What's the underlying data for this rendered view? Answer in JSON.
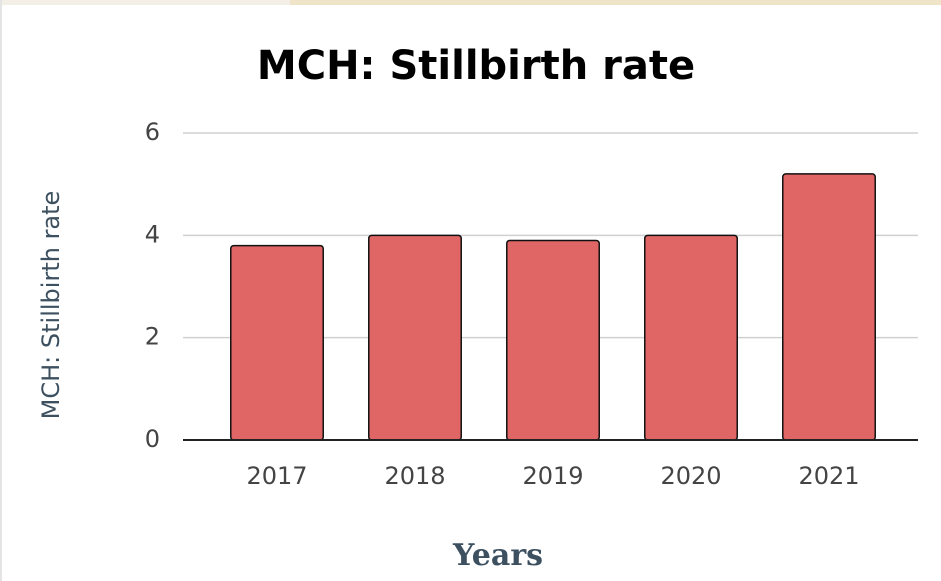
{
  "chart_data": {
    "type": "bar",
    "title": "MCH: Stillbirth rate",
    "x_label": "Years",
    "y_label": "MCH: Stillbirth rate",
    "categories": [
      "2017",
      "2018",
      "2019",
      "2020",
      "2021"
    ],
    "values": [
      3.8,
      4.0,
      3.9,
      4.0,
      5.2
    ],
    "color": "#e06666",
    "ylim": [
      0,
      6
    ],
    "yticks": [
      0,
      2,
      4,
      6
    ],
    "grid": true
  }
}
